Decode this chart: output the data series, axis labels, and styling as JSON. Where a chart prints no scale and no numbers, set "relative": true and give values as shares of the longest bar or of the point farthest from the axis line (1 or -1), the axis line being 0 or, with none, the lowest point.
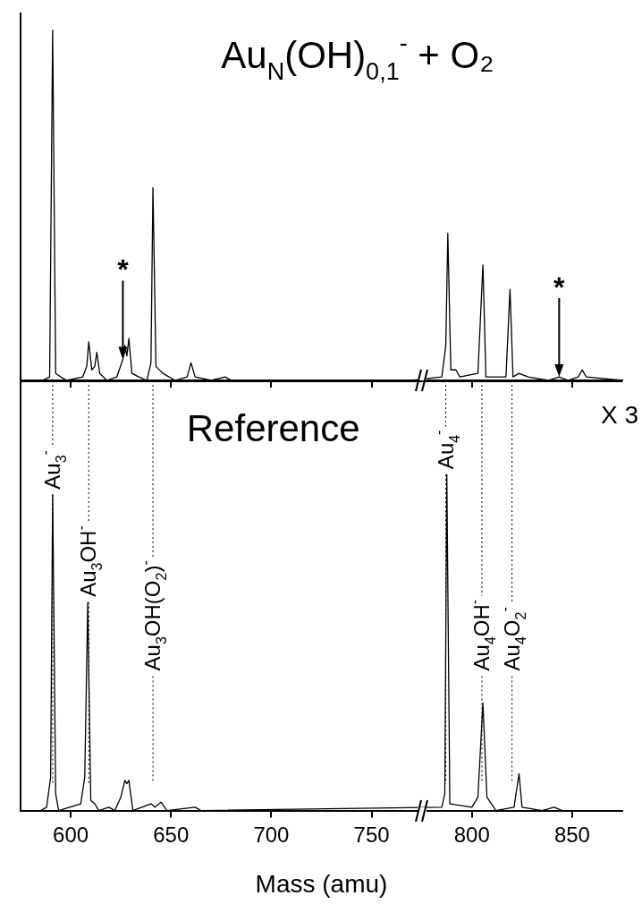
{
  "chart_data": [
    {
      "type": "line",
      "title": "Au$_{N}$(OH)$_{0,1}$$^{-}$ + O₂",
      "relative": true,
      "color": "#000000",
      "x": [
        575,
        586,
        589.5,
        591,
        592.5,
        595,
        598,
        606,
        608,
        609,
        610.5,
        612,
        613,
        614.5,
        618,
        623,
        626,
        627,
        628,
        629,
        630.5,
        634,
        638,
        640,
        641,
        642.5,
        646,
        652,
        658,
        660,
        662,
        670,
        677,
        680,
        770,
        785,
        787,
        788,
        789.5,
        792,
        794,
        803,
        805.5,
        807,
        817,
        819,
        820.5,
        823.5,
        828,
        838,
        843.5,
        848,
        853,
        855,
        857,
        875
      ],
      "values": [
        0,
        0,
        0.01,
        1.0,
        0.02,
        0.01,
        0,
        0.01,
        0.04,
        0.11,
        0.03,
        0.04,
        0.08,
        0.02,
        0,
        0.01,
        0.06,
        0.1,
        0.07,
        0.12,
        0.02,
        0.01,
        0,
        0.05,
        0.55,
        0.04,
        0.02,
        0,
        0.01,
        0.05,
        0.01,
        0,
        0.01,
        0,
        0,
        0.01,
        0.1,
        0.42,
        0.03,
        0.03,
        0.01,
        0.02,
        0.33,
        0.01,
        0.01,
        0.26,
        0.01,
        0.02,
        0.01,
        0,
        0.01,
        0,
        0.01,
        0.03,
        0.01,
        0
      ],
      "xlim": [
        575,
        875
      ],
      "xticks": [
        600,
        650,
        700,
        750,
        800,
        850
      ],
      "tick_labels": false,
      "annotations": [
        {
          "text": "*",
          "x": 626,
          "y": 0.06
        },
        {
          "text": "*",
          "x": 843.5,
          "y": 0.01
        }
      ]
    },
    {
      "type": "line",
      "title": "Reference",
      "relative": true,
      "color": "#000000",
      "xlabel": "Mass (amu)",
      "x": [
        575,
        585,
        588,
        590,
        591,
        592.5,
        594,
        605,
        607,
        608.5,
        610,
        612,
        614,
        619,
        622,
        625,
        627,
        628,
        629,
        631,
        640,
        642,
        645,
        648,
        662,
        665,
        785,
        786.5,
        787.5,
        789,
        800,
        803,
        805.5,
        807.5,
        812,
        821,
        823.5,
        825,
        835,
        841,
        845,
        875
      ],
      "values": [
        0,
        0,
        0.01,
        0.1,
        0.94,
        0.05,
        0,
        0.02,
        0.1,
        0.62,
        0.03,
        0.02,
        0,
        0.01,
        0,
        0.04,
        0.09,
        0.08,
        0.09,
        0,
        0.02,
        0.01,
        0.025,
        0,
        0.01,
        0,
        0.01,
        0.05,
        1.0,
        0.02,
        0.01,
        0.04,
        0.32,
        0.04,
        0,
        0.01,
        0.11,
        0.01,
        0,
        0.01,
        0,
        0
      ],
      "xlim": [
        575,
        875
      ],
      "xticks": [
        600,
        650,
        700,
        750,
        800,
        850
      ],
      "tick_labels": "x",
      "ref_lines": [
        {
          "axis": "x",
          "value": 591,
          "label": "Au$_{3}$$^{-}$",
          "line_style": "dotted"
        },
        {
          "axis": "x",
          "value": 609,
          "label": "Au$_{3}$OH$^{-}$",
          "line_style": "dotted"
        },
        {
          "axis": "x",
          "value": 641,
          "label": "Au$_{3}$OH(O$_{2}$)$^{-}$",
          "line_style": "dotted"
        },
        {
          "axis": "x",
          "value": 787,
          "label": "Au$_{4}$$^{-}$",
          "line_style": "dotted"
        },
        {
          "axis": "x",
          "value": 805,
          "label": "Au$_{4}$OH$^{-}$",
          "line_style": "dotted"
        },
        {
          "axis": "x",
          "value": 820,
          "label": "Au$_{4}$O$_{2}$$^{-}$",
          "line_style": "dotted"
        }
      ],
      "annotations": [
        "X 3"
      ]
    }
  ]
}
